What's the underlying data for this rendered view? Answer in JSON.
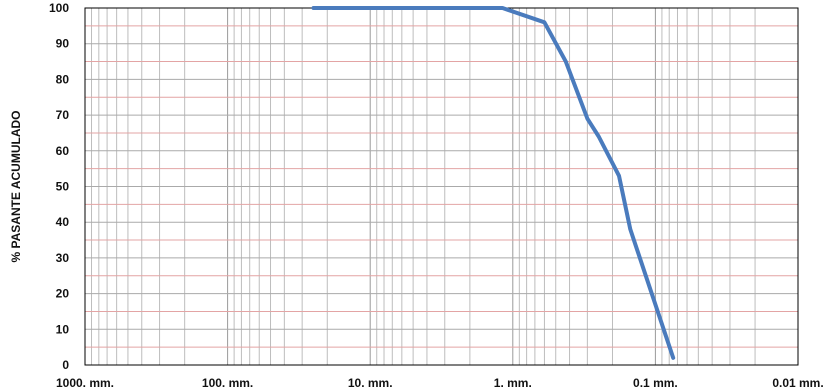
{
  "chart_data": {
    "type": "line",
    "title": "",
    "xlabel": "",
    "ylabel": "% PASANTE ACUMULADO",
    "x_scale": "log",
    "x_reversed": true,
    "x_unit": "mm",
    "xlim": [
      1000,
      0.01
    ],
    "ylim": [
      0,
      100
    ],
    "x_ticks": [
      {
        "value": 1000,
        "label": "1000. mm."
      },
      {
        "value": 100,
        "label": "100. mm."
      },
      {
        "value": 10,
        "label": "10. mm."
      },
      {
        "value": 1,
        "label": "1. mm."
      },
      {
        "value": 0.1,
        "label": "0.1 mm."
      },
      {
        "value": 0.01,
        "label": "0.01 mm."
      }
    ],
    "y_ticks": [
      0,
      10,
      20,
      30,
      40,
      50,
      60,
      70,
      80,
      90,
      100
    ],
    "grid": true,
    "legend": "none",
    "series": [
      {
        "color": "#4a7bbd",
        "x": [
          25,
          1.18,
          0.6,
          0.425,
          0.3,
          0.25,
          0.18,
          0.15,
          0.075
        ],
        "y": [
          100,
          100,
          96,
          85,
          69,
          64,
          53,
          38,
          2
        ]
      }
    ]
  }
}
